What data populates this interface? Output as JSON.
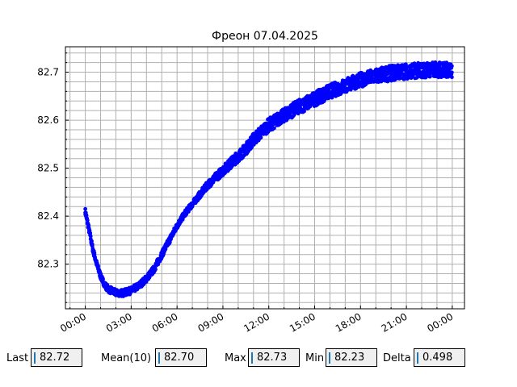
{
  "chart_data": {
    "type": "scatter",
    "title": "Фреон 07.04.2025",
    "xlabel": "",
    "ylabel": "",
    "x_unit": "hours since 00:00",
    "x_ticks": [
      "00:00",
      "03:00",
      "06:00",
      "09:00",
      "12:00",
      "15:00",
      "18:00",
      "21:00",
      "00:00"
    ],
    "y_ticks": [
      "82.3",
      "82.4",
      "82.5",
      "82.6",
      "82.7"
    ],
    "xlim": [
      -1.3,
      24.8
    ],
    "ylim": [
      82.207,
      82.753
    ],
    "grid": true,
    "color": "#0000ff",
    "series": [
      {
        "name": "",
        "x": [
          0,
          0.25,
          0.5,
          0.75,
          1,
          1.25,
          1.5,
          2,
          2.5,
          3,
          3.5,
          4,
          4.5,
          5,
          5.5,
          6,
          6.5,
          7,
          7.5,
          8,
          8.5,
          9,
          9.5,
          10,
          10.5,
          11,
          11.5,
          12,
          12.5,
          13,
          13.5,
          14,
          14.5,
          15,
          15.5,
          16,
          16.5,
          17,
          17.5,
          18,
          18.5,
          19,
          19.5,
          20,
          20.5,
          21,
          21.5,
          22,
          22.5,
          23,
          23.5,
          24
        ],
        "y": [
          82.41,
          82.37,
          82.33,
          82.3,
          82.275,
          82.258,
          82.248,
          82.24,
          82.24,
          82.245,
          82.255,
          82.27,
          82.29,
          82.32,
          82.35,
          82.38,
          82.405,
          82.425,
          82.445,
          82.465,
          82.48,
          82.495,
          82.51,
          82.525,
          82.54,
          82.56,
          82.575,
          82.59,
          82.6,
          82.61,
          82.62,
          82.628,
          82.636,
          82.644,
          82.652,
          82.66,
          82.666,
          82.672,
          82.678,
          82.684,
          82.688,
          82.692,
          82.695,
          82.698,
          82.7,
          82.702,
          82.703,
          82.704,
          82.705,
          82.705,
          82.705,
          82.705
        ],
        "spread": [
          0.006,
          0.006,
          0.006,
          0.006,
          0.006,
          0.006,
          0.007,
          0.007,
          0.007,
          0.007,
          0.007,
          0.007,
          0.007,
          0.007,
          0.007,
          0.006,
          0.006,
          0.006,
          0.007,
          0.008,
          0.009,
          0.01,
          0.011,
          0.012,
          0.012,
          0.013,
          0.013,
          0.014,
          0.014,
          0.014,
          0.015,
          0.015,
          0.015,
          0.015,
          0.015,
          0.015,
          0.015,
          0.015,
          0.015,
          0.015,
          0.015,
          0.016,
          0.016,
          0.016,
          0.016,
          0.016,
          0.016,
          0.016,
          0.016,
          0.016,
          0.016,
          0.016
        ]
      }
    ]
  },
  "stats": [
    {
      "label": "Last",
      "value": "82.72"
    },
    {
      "label": "Mean(10)",
      "value": "82.70"
    },
    {
      "label": "Max",
      "value": "82.73"
    },
    {
      "label": "Min",
      "value": "82.23"
    },
    {
      "label": "Delta",
      "value": "0.498"
    }
  ]
}
